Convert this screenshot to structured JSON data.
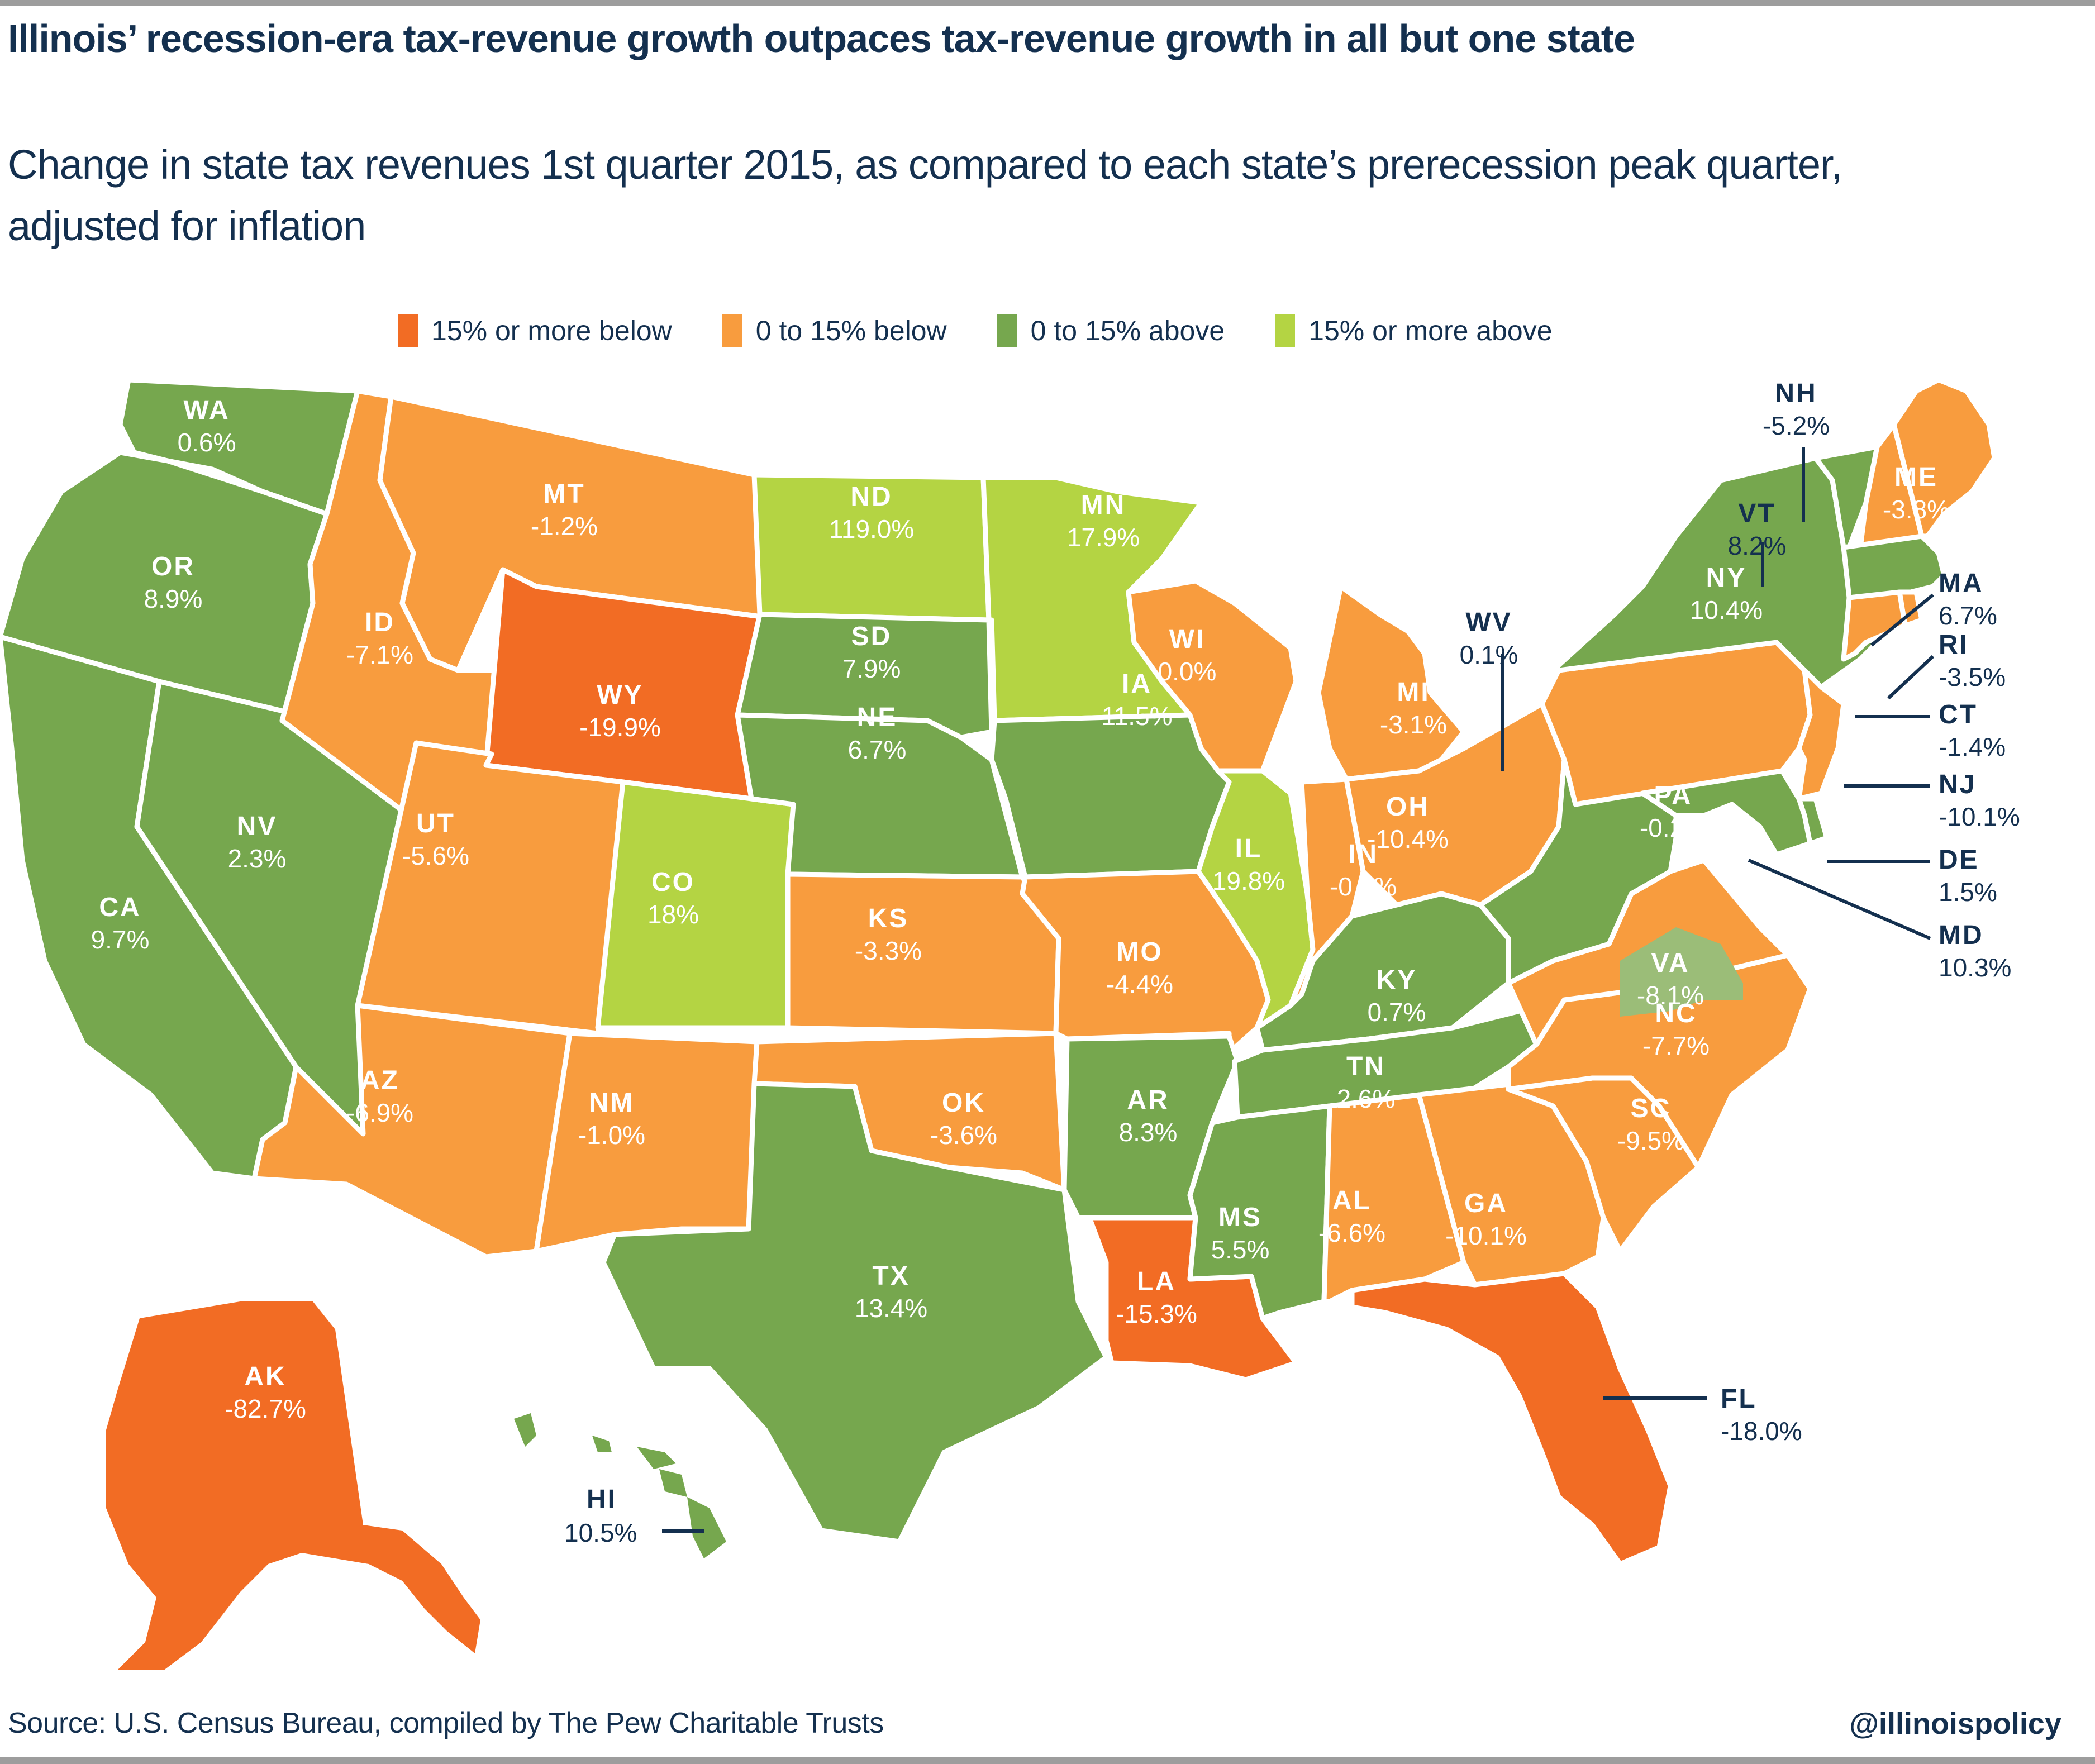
{
  "header": {
    "title": "Illinois’ recession-era tax-revenue growth outpaces tax-revenue growth in all but one state",
    "subtitle": "Change in state tax revenues 1st quarter 2015, as compared to each state’s prerecession peak quarter, adjusted for inflation"
  },
  "legend": [
    {
      "label": "15% or more below",
      "color": "#f26c24"
    },
    {
      "label": "0 to 15% below",
      "color": "#f89c3e"
    },
    {
      "label": "0 to 15% above",
      "color": "#76a74e"
    },
    {
      "label": "15% or more above",
      "color": "#b4d443"
    }
  ],
  "footer": {
    "source": "Source: U.S. Census Bureau, compiled by The Pew Charitable Trusts",
    "handle": "@illinoispolicy"
  },
  "chart_data": {
    "type": "choropleth",
    "title": "Illinois’ recession-era tax-revenue growth outpaces tax-revenue growth in all but one state",
    "subtitle": "Change in state tax revenues 1st quarter 2015, as compared to each state’s prerecession peak quarter, adjusted for inflation",
    "unit": "percent change",
    "legend_position": "top",
    "bins": [
      {
        "label": "15% or more below",
        "color": "#f26c24"
      },
      {
        "label": "0 to 15% below",
        "color": "#f89c3e"
      },
      {
        "label": "0 to 15% above",
        "color": "#76a74e"
      },
      {
        "label": "15% or more above",
        "color": "#b4d443"
      }
    ],
    "states": [
      {
        "code": "WA",
        "value": 0.6,
        "label": "0.6%",
        "bin": 2
      },
      {
        "code": "OR",
        "value": 8.9,
        "label": "8.9%",
        "bin": 2
      },
      {
        "code": "CA",
        "value": 9.7,
        "label": "9.7%",
        "bin": 2
      },
      {
        "code": "NV",
        "value": 2.3,
        "label": "2.3%",
        "bin": 2
      },
      {
        "code": "ID",
        "value": -7.1,
        "label": "-7.1%",
        "bin": 1
      },
      {
        "code": "MT",
        "value": -1.2,
        "label": "-1.2%",
        "bin": 1
      },
      {
        "code": "WY",
        "value": -19.9,
        "label": "-19.9%",
        "bin": 0
      },
      {
        "code": "UT",
        "value": -5.6,
        "label": "-5.6%",
        "bin": 1
      },
      {
        "code": "AZ",
        "value": -6.9,
        "label": "-6.9%",
        "bin": 1
      },
      {
        "code": "CO",
        "value": 18,
        "label": "18%",
        "bin": 3
      },
      {
        "code": "NM",
        "value": -1.0,
        "label": "-1.0%",
        "bin": 1
      },
      {
        "code": "ND",
        "value": 119.0,
        "label": "119.0%",
        "bin": 3
      },
      {
        "code": "SD",
        "value": 7.9,
        "label": "7.9%",
        "bin": 2
      },
      {
        "code": "NE",
        "value": 6.7,
        "label": "6.7%",
        "bin": 2
      },
      {
        "code": "KS",
        "value": -3.3,
        "label": "-3.3%",
        "bin": 1
      },
      {
        "code": "OK",
        "value": -3.6,
        "label": "-3.6%",
        "bin": 1
      },
      {
        "code": "TX",
        "value": 13.4,
        "label": "13.4%",
        "bin": 2
      },
      {
        "code": "MN",
        "value": 17.9,
        "label": "17.9%",
        "bin": 3
      },
      {
        "code": "IA",
        "value": 11.5,
        "label": "11.5%",
        "bin": 2
      },
      {
        "code": "MO",
        "value": -4.4,
        "label": "-4.4%",
        "bin": 1
      },
      {
        "code": "AR",
        "value": 8.3,
        "label": "8.3%",
        "bin": 2
      },
      {
        "code": "LA",
        "value": -15.3,
        "label": "-15.3%",
        "bin": 0
      },
      {
        "code": "WI",
        "value": 0.0,
        "label": "0.0%",
        "bin": 1
      },
      {
        "code": "IL",
        "value": 19.8,
        "label": "19.8%",
        "bin": 3
      },
      {
        "code": "MI",
        "value": -3.1,
        "label": "-3.1%",
        "bin": 1
      },
      {
        "code": "IN",
        "value": -0.1,
        "label": "-0.1%",
        "bin": 1
      },
      {
        "code": "OH",
        "value": -10.4,
        "label": "-10.4%",
        "bin": 1
      },
      {
        "code": "KY",
        "value": 0.7,
        "label": "0.7%",
        "bin": 2
      },
      {
        "code": "TN",
        "value": 2.6,
        "label": "2.6%",
        "bin": 2
      },
      {
        "code": "MS",
        "value": 5.5,
        "label": "5.5%",
        "bin": 2
      },
      {
        "code": "AL",
        "value": -6.6,
        "label": "-6.6%",
        "bin": 1
      },
      {
        "code": "GA",
        "value": -10.1,
        "label": "-10.1%",
        "bin": 1
      },
      {
        "code": "FL",
        "value": -18.0,
        "label": "-18.0%",
        "bin": 0
      },
      {
        "code": "SC",
        "value": -9.5,
        "label": "-9.5%",
        "bin": 1
      },
      {
        "code": "NC",
        "value": -7.7,
        "label": "-7.7%",
        "bin": 1
      },
      {
        "code": "VA",
        "value": -8.1,
        "label": "-8.1%",
        "bin": 1
      },
      {
        "code": "WV",
        "value": 0.1,
        "label": "0.1%",
        "bin": 2
      },
      {
        "code": "PA",
        "value": -0.2,
        "label": "-0.2%",
        "bin": 1
      },
      {
        "code": "NY",
        "value": 10.4,
        "label": "10.4%",
        "bin": 2
      },
      {
        "code": "VT",
        "value": 8.2,
        "label": "8.2%",
        "bin": 2
      },
      {
        "code": "NH",
        "value": -5.2,
        "label": "-5.2%",
        "bin": 1
      },
      {
        "code": "ME",
        "value": -3.8,
        "label": "-3.8%",
        "bin": 1
      },
      {
        "code": "MA",
        "value": 6.7,
        "label": "6.7%",
        "bin": 2
      },
      {
        "code": "RI",
        "value": -3.5,
        "label": "-3.5%",
        "bin": 1
      },
      {
        "code": "CT",
        "value": -1.4,
        "label": "-1.4%",
        "bin": 1
      },
      {
        "code": "NJ",
        "value": -10.1,
        "label": "-10.1%",
        "bin": 1
      },
      {
        "code": "DE",
        "value": 1.5,
        "label": "1.5%",
        "bin": 2
      },
      {
        "code": "MD",
        "value": 10.3,
        "label": "10.3%",
        "bin": 2
      },
      {
        "code": "AK",
        "value": -82.7,
        "label": "-82.7%",
        "bin": 0
      },
      {
        "code": "HI",
        "value": 10.5,
        "label": "10.5%",
        "bin": 2
      }
    ]
  }
}
